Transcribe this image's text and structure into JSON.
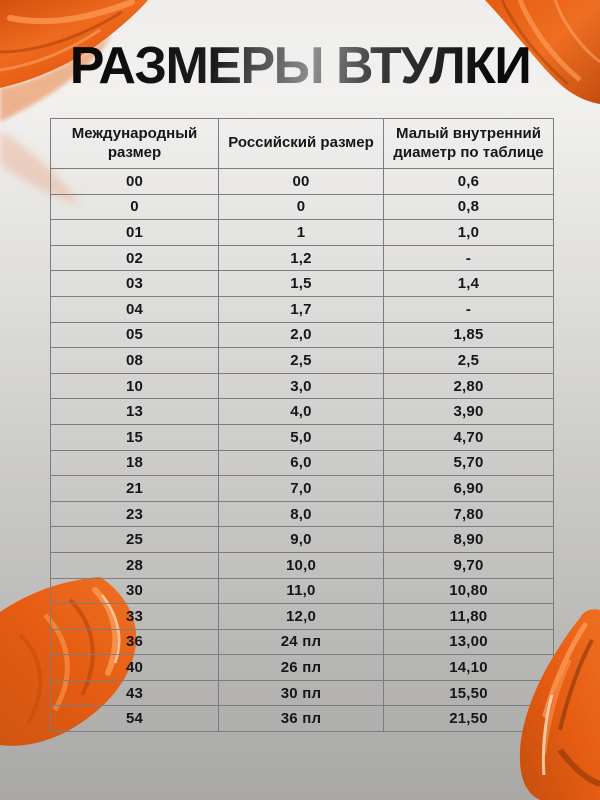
{
  "title": "РАЗМЕРЫ ВТУЛКИ",
  "colors": {
    "paint_orange": "#e8611a",
    "paint_highlight": "#ff9e5a",
    "paint_shadow": "#a63e08",
    "background_top": "#f2f1ef",
    "background_bottom": "#a9a8a6",
    "table_border": "#7d7d7d",
    "text": "#171717"
  },
  "decorations": {
    "paint_smears": [
      "paint-smear-top-left",
      "paint-smear-top-right",
      "paint-smear-bottom-left",
      "paint-smear-bottom-right"
    ]
  },
  "table": {
    "headers": [
      "Международный размер",
      "Российский размер",
      "Малый внутренний диаметр по таблице"
    ],
    "rows": [
      [
        "00",
        "00",
        "0,6"
      ],
      [
        "0",
        "0",
        "0,8"
      ],
      [
        "01",
        "1",
        "1,0"
      ],
      [
        "02",
        "1,2",
        "-"
      ],
      [
        "03",
        "1,5",
        "1,4"
      ],
      [
        "04",
        "1,7",
        "-"
      ],
      [
        "05",
        "2,0",
        "1,85"
      ],
      [
        "08",
        "2,5",
        "2,5"
      ],
      [
        "10",
        "3,0",
        "2,80"
      ],
      [
        "13",
        "4,0",
        "3,90"
      ],
      [
        "15",
        "5,0",
        "4,70"
      ],
      [
        "18",
        "6,0",
        "5,70"
      ],
      [
        "21",
        "7,0",
        "6,90"
      ],
      [
        "23",
        "8,0",
        "7,80"
      ],
      [
        "25",
        "9,0",
        "8,90"
      ],
      [
        "28",
        "10,0",
        "9,70"
      ],
      [
        "30",
        "11,0",
        "10,80"
      ],
      [
        "33",
        "12,0",
        "11,80"
      ],
      [
        "36",
        "24 пл",
        "13,00"
      ],
      [
        "40",
        "26 пл",
        "14,10"
      ],
      [
        "43",
        "30 пл",
        "15,50"
      ],
      [
        "54",
        "36 пл",
        "21,50"
      ]
    ]
  }
}
